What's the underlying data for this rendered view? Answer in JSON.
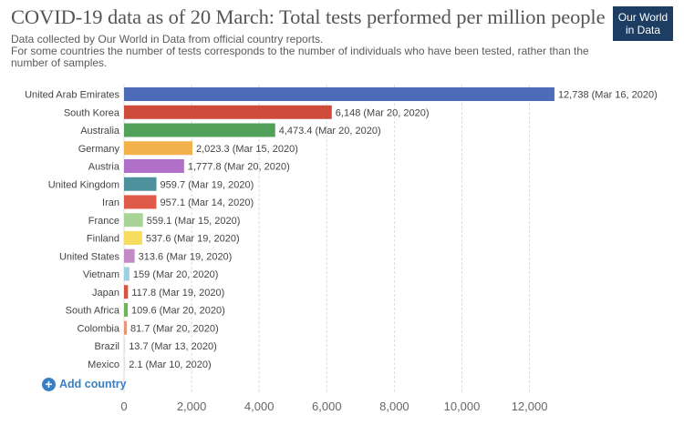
{
  "header": {
    "title": "COVID-19 data as of 20 March: Total tests performed per million people",
    "subtitle_lines": [
      "Data collected by Our World in Data from official country reports.",
      "For some countries the number of tests corresponds to the number of individuals who have been tested, rather than the",
      "number of samples."
    ]
  },
  "logo": {
    "line1": "Our World",
    "line2": "in Data"
  },
  "controls": {
    "add_country_label": "Add country",
    "add_icon": "plus-circle-icon"
  },
  "chart_data": {
    "type": "bar",
    "orientation": "horizontal",
    "title": "COVID-19 data as of 20 March: Total tests performed per million people",
    "xlim": [
      0,
      13200
    ],
    "x_ticks": [
      0,
      2000,
      4000,
      6000,
      8000,
      10000,
      12000
    ],
    "x_tick_labels": [
      "0",
      "2,000",
      "4,000",
      "6,000",
      "8,000",
      "10,000",
      "12,000"
    ],
    "grid": "vertical dashed",
    "categories": [
      "United Arab Emirates",
      "South Korea",
      "Australia",
      "Germany",
      "Austria",
      "United Kingdom",
      "Iran",
      "France",
      "Finland",
      "United States",
      "Vietnam",
      "Japan",
      "South Africa",
      "Colombia",
      "Brazil",
      "Mexico"
    ],
    "values": [
      12738,
      6148,
      4473.4,
      2023.3,
      1777.8,
      959.7,
      957.1,
      559.1,
      537.6,
      313.6,
      159,
      117.8,
      109.6,
      81.7,
      13.7,
      2.1
    ],
    "value_labels": [
      "12,738",
      "6,148",
      "4,473.4",
      "2,023.3",
      "1,777.8",
      "959.7",
      "957.1",
      "559.1",
      "537.6",
      "313.6",
      "159",
      "117.8",
      "109.6",
      "81.7",
      "13.7",
      "2.1"
    ],
    "dates": [
      "Mar 16, 2020",
      "Mar 20, 2020",
      "Mar 20, 2020",
      "Mar 15, 2020",
      "Mar 20, 2020",
      "Mar 19, 2020",
      "Mar 14, 2020",
      "Mar 15, 2020",
      "Mar 19, 2020",
      "Mar 19, 2020",
      "Mar 20, 2020",
      "Mar 19, 2020",
      "Mar 20, 2020",
      "Mar 20, 2020",
      "Mar 13, 2020",
      "Mar 10, 2020"
    ],
    "colors": [
      "#4e6bb7",
      "#cf4b3c",
      "#52a15a",
      "#f3b14c",
      "#b06fc8",
      "#4d929d",
      "#e05a4a",
      "#a8d49a",
      "#f7dd5e",
      "#c38ac6",
      "#9dcfe3",
      "#d6533f",
      "#6fb456",
      "#e8967a",
      "#e0e0e0",
      "#e0e0e0"
    ]
  }
}
